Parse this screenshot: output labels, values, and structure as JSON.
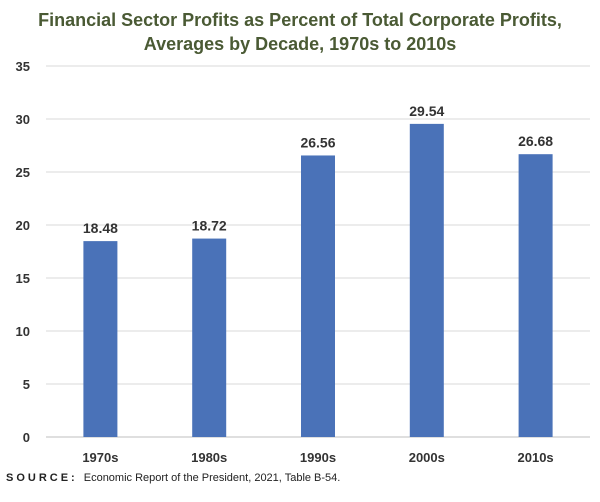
{
  "chart_data": {
    "type": "bar",
    "title_line1": "Financial Sector Profits as Percent of Total Corporate Profits,",
    "title_line2": "Averages by Decade, 1970s to 2010s",
    "categories": [
      "1970s",
      "1980s",
      "1990s",
      "2000s",
      "2010s"
    ],
    "values": [
      18.48,
      18.72,
      26.56,
      29.54,
      26.68
    ],
    "data_labels": [
      "18.48",
      "18.72",
      "26.56",
      "29.54",
      "26.68"
    ],
    "ylim": [
      0,
      35
    ],
    "yticks": [
      0,
      5,
      10,
      15,
      20,
      25,
      30,
      35
    ],
    "xlabel": "",
    "ylabel": "",
    "grid": true,
    "bar_color": "#4a72b8"
  },
  "source": {
    "label": "SOURCE:",
    "text": "Economic Report of the President, 2021, Table B-54."
  }
}
